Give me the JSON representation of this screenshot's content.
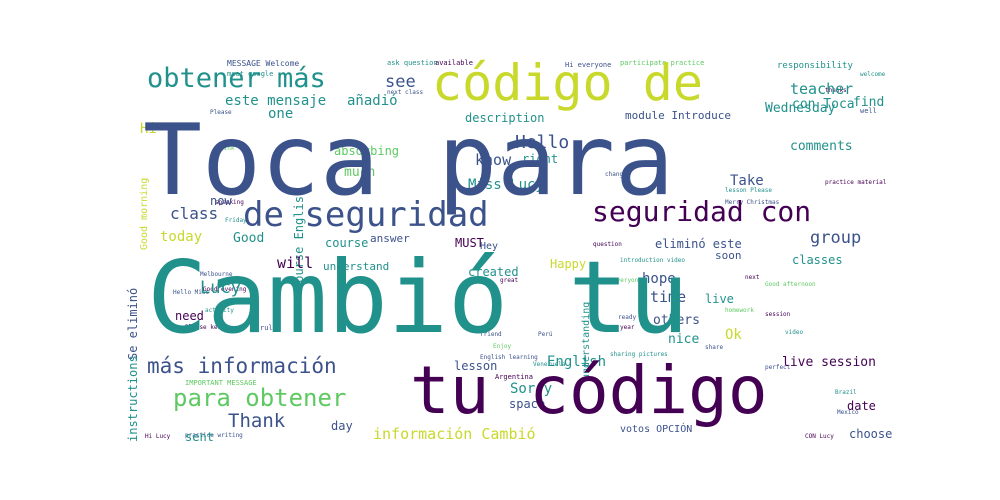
{
  "palette": {
    "dark_purple": "#440154",
    "indigo": "#3b528b",
    "teal": "#21918c",
    "green": "#5ec962",
    "yellow": "#c8d92c"
  },
  "words": {
    "toca_para": "Toca para",
    "cambio_tu": "Cambió tu",
    "tu_codigo": "tu código",
    "codigo_de": "código de",
    "de_seguridad": "de seguridad",
    "seguridad_con": "seguridad con",
    "obtener_mas": "obtener más",
    "mas_informacion": "más información",
    "para_obtener": "para obtener",
    "informacion_cambio": "información Cambió",
    "este_mensaje": "este mensaje",
    "anadio": "añadió",
    "elimino_este": "eliminó este",
    "se_elimino": "Se eliminó",
    "con_toca": "con Toca",
    "hello": "Hello",
    "lucy": "Lucy",
    "miss_lucy": "Miss Lucy",
    "thank": "Thank",
    "take": "Take",
    "class": "class",
    "group": "group",
    "english": "English",
    "teacher": "teacher",
    "see": "see",
    "know": "know",
    "time": "time",
    "others": "others",
    "good": "Good",
    "today": "today",
    "will": "will",
    "hope": "hope",
    "course": "course",
    "course_english": "course English",
    "description": "description",
    "module_introduce": "module Introduce",
    "wednesday": "Wednesday",
    "find": "find",
    "comments": "comments",
    "absorbing": "absorbing",
    "much": "much",
    "right": "right",
    "now": "now",
    "one": "one",
    "hi": "Hi",
    "good_morning": "Good morning",
    "instructions": "instructions",
    "sent": "sent",
    "day": "day",
    "sorry": "Sorry",
    "space": "space",
    "lesson": "lesson",
    "votos_opcion": "votos OPCIÓN",
    "choose": "choose",
    "date": "date",
    "live_session": "live session",
    "nice": "nice",
    "ok": "Ok",
    "need": "need",
    "understand": "understand",
    "created": "created",
    "answer": "answer",
    "must": "MUST",
    "happy": "Happy",
    "soon": "soon",
    "classes": "classes",
    "live": "live",
    "understanding": "understanding",
    "responsibility": "responsibility",
    "message_welcome": "MESSAGE Welcome",
    "meet_google": "meet google",
    "ask_question": "ask question",
    "available": "available",
    "hi_everyone": "Hi everyone",
    "participate_practice": "participate practice",
    "hey": "Hey",
    "please": "Please",
    "good_evening": "Good evening",
    "melbourne": "Melbourne",
    "hello_miss": "Hello Miss",
    "important_message": "IMPORTANT MESSAGE",
    "hi_lucy": "Hi Lucy",
    "practice_writing": "practice writing",
    "next_class": "next class",
    "introduction_video": "introduction video",
    "friend": "friend",
    "argentina": "Argentina",
    "peru": "Perú",
    "brazil": "Brazil",
    "mexico": "Mexico",
    "ready": "ready",
    "year": "year",
    "share": "share",
    "lesson_please": "lesson Please",
    "practice_material": "practice material",
    "merry_christmas": "Merry Christmas",
    "please_keep": "Please keep",
    "rule": "rule",
    "with_lucy": "CON Lucy",
    "english_learning": "English learning",
    "sharing_pictures": "sharing pictures",
    "venezuela": "Venezuela",
    "next": "next",
    "great": "great",
    "enjoy": "Enjoy",
    "everyone": "everyone",
    "session": "session",
    "homework": "homework",
    "video": "video",
    "perfect": "perfect",
    "activity": "activity",
    "speaking": "speaking",
    "friday": "Friday",
    "thanks": "thanks",
    "good_afternoon": "Good afternoon",
    "link": "link",
    "question": "question",
    "change": "change",
    "well": "well",
    "welcome": "welcome"
  }
}
